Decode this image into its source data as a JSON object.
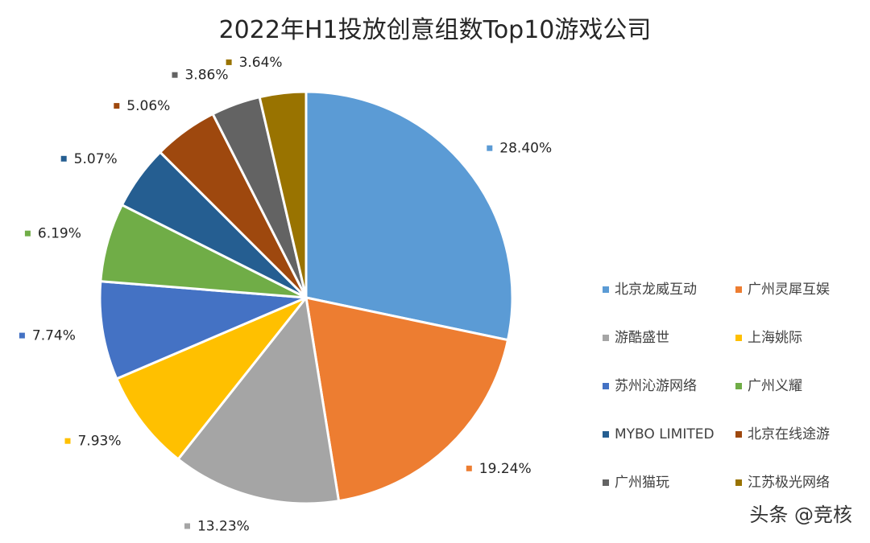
{
  "chart_data": {
    "type": "pie",
    "title": "2022年H1投放创意组数Top10游戏公司",
    "categories": [
      "北京龙威互动",
      "广州灵犀互娱",
      "游酷盛世",
      "上海姚际",
      "苏州沁游网络",
      "广州义耀",
      "MYBO LIMITED",
      "北京在线途游",
      "广州猫玩",
      "江苏极光网络"
    ],
    "values": [
      28.4,
      19.24,
      13.23,
      7.93,
      7.74,
      6.19,
      5.07,
      5.06,
      3.86,
      3.64
    ],
    "labels": [
      "28.40%",
      "19.24%",
      "13.23%",
      "7.93%",
      "7.74%",
      "6.19%",
      "5.07%",
      "5.06%",
      "3.86%",
      "3.64%"
    ],
    "colors": [
      "#5B9BD5",
      "#ED7D31",
      "#A5A5A5",
      "#FFC000",
      "#4472C4",
      "#70AD47",
      "#255E91",
      "#9E480E",
      "#636363",
      "#997300"
    ],
    "legend_position": "right"
  },
  "watermark": "头条 @竞核"
}
